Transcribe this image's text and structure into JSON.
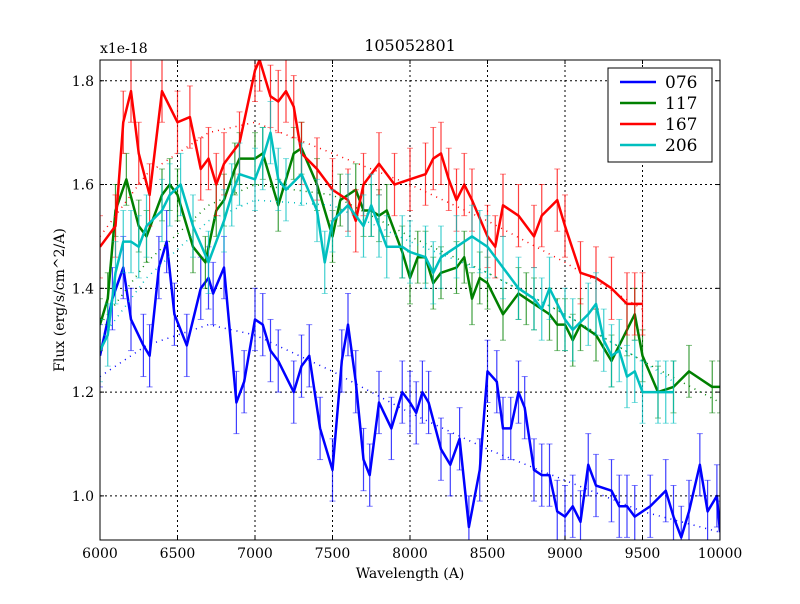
{
  "chart_data": {
    "type": "line",
    "title": "105052801",
    "xlabel": "Wavelength (A)",
    "ylabel": "Flux (erg/s/cm^2/A)",
    "y_offset_label": "x1e-18",
    "xlim": [
      6000,
      10000
    ],
    "ylim": [
      0.915,
      1.84
    ],
    "xticks": [
      6000,
      6500,
      7000,
      7500,
      8000,
      8500,
      9000,
      9500,
      10000
    ],
    "yticks": [
      1.0,
      1.2,
      1.4,
      1.6,
      1.8
    ],
    "ytick_labels": [
      "1.0",
      "1.2",
      "1.4",
      "1.6",
      "1.8"
    ],
    "grid": true,
    "legend_position": "top-right",
    "series": [
      {
        "name": "076",
        "color": "#0000ff",
        "err": 0.06,
        "x": [
          6000,
          6080,
          6150,
          6200,
          6280,
          6320,
          6380,
          6430,
          6480,
          6560,
          6650,
          6700,
          6730,
          6800,
          6880,
          6930,
          7000,
          7050,
          7100,
          7150,
          7250,
          7300,
          7350,
          7420,
          7500,
          7560,
          7600,
          7650,
          7700,
          7740,
          7800,
          7880,
          7950,
          8000,
          8040,
          8080,
          8120,
          8200,
          8260,
          8320,
          8380,
          8450,
          8500,
          8560,
          8600,
          8650,
          8700,
          8740,
          8800,
          8850,
          8900,
          8950,
          9000,
          9050,
          9100,
          9150,
          9200,
          9300,
          9350,
          9400,
          9450,
          9550,
          9650,
          9700,
          9750,
          9800,
          9870,
          9920,
          9980,
          10000
        ],
        "y": [
          1.27,
          1.38,
          1.44,
          1.34,
          1.29,
          1.27,
          1.44,
          1.49,
          1.35,
          1.29,
          1.4,
          1.42,
          1.39,
          1.44,
          1.18,
          1.22,
          1.34,
          1.33,
          1.28,
          1.26,
          1.2,
          1.25,
          1.27,
          1.13,
          1.05,
          1.26,
          1.33,
          1.22,
          1.07,
          1.04,
          1.18,
          1.13,
          1.2,
          1.18,
          1.16,
          1.2,
          1.18,
          1.09,
          1.06,
          1.11,
          0.94,
          1.05,
          1.24,
          1.22,
          1.13,
          1.13,
          1.2,
          1.17,
          1.05,
          1.04,
          1.04,
          0.97,
          0.96,
          0.98,
          0.95,
          1.06,
          1.02,
          1.01,
          0.98,
          0.98,
          0.96,
          0.98,
          1.01,
          0.96,
          0.92,
          0.97,
          1.06,
          0.97,
          1.0,
          0.93
        ],
        "model_x": [
          6000,
          6300,
          6700,
          7000,
          7500,
          8000,
          8500,
          9000,
          9500,
          10000
        ],
        "model_y": [
          1.23,
          1.29,
          1.33,
          1.31,
          1.24,
          1.16,
          1.09,
          1.03,
          0.97,
          0.93
        ]
      },
      {
        "name": "117",
        "color": "#008000",
        "err": 0.05,
        "x": [
          6000,
          6050,
          6100,
          6170,
          6250,
          6300,
          6400,
          6450,
          6500,
          6600,
          6680,
          6750,
          6800,
          6870,
          6900,
          7000,
          7050,
          7150,
          7250,
          7300,
          7400,
          7500,
          7550,
          7650,
          7700,
          7750,
          7800,
          7850,
          7950,
          8000,
          8050,
          8100,
          8150,
          8200,
          8300,
          8350,
          8400,
          8450,
          8500,
          8600,
          8700,
          8750,
          8800,
          8900,
          8950,
          9000,
          9050,
          9100,
          9200,
          9300,
          9400,
          9450,
          9500,
          9600,
          9700,
          9800,
          9950,
          10000
        ],
        "y": [
          1.33,
          1.38,
          1.55,
          1.61,
          1.52,
          1.5,
          1.58,
          1.6,
          1.58,
          1.48,
          1.45,
          1.55,
          1.57,
          1.63,
          1.65,
          1.65,
          1.66,
          1.56,
          1.66,
          1.67,
          1.6,
          1.5,
          1.57,
          1.59,
          1.55,
          1.55,
          1.54,
          1.55,
          1.47,
          1.42,
          1.46,
          1.46,
          1.41,
          1.43,
          1.44,
          1.46,
          1.38,
          1.42,
          1.41,
          1.35,
          1.39,
          1.38,
          1.37,
          1.35,
          1.33,
          1.33,
          1.3,
          1.33,
          1.31,
          1.26,
          1.32,
          1.35,
          1.27,
          1.2,
          1.21,
          1.24,
          1.21,
          1.21
        ],
        "model_x": [
          6000,
          6300,
          6700,
          7000,
          7500,
          8000,
          8500,
          9000,
          9500,
          10000
        ],
        "model_y": [
          1.33,
          1.45,
          1.56,
          1.6,
          1.58,
          1.5,
          1.43,
          1.35,
          1.26,
          1.18
        ]
      },
      {
        "name": "167",
        "color": "#ff0000",
        "err": 0.06,
        "x": [
          6000,
          6100,
          6150,
          6200,
          6250,
          6320,
          6400,
          6500,
          6580,
          6650,
          6700,
          6750,
          6800,
          6900,
          7000,
          7030,
          7100,
          7150,
          7200,
          7250,
          7300,
          7400,
          7500,
          7600,
          7650,
          7700,
          7800,
          7900,
          8000,
          8100,
          8150,
          8200,
          8250,
          8300,
          8350,
          8400,
          8500,
          8550,
          8600,
          8700,
          8800,
          8850,
          8950,
          9000,
          9100,
          9200,
          9300,
          9400,
          9450,
          9500
        ],
        "y": [
          1.48,
          1.52,
          1.72,
          1.78,
          1.66,
          1.58,
          1.78,
          1.72,
          1.73,
          1.63,
          1.65,
          1.6,
          1.64,
          1.68,
          1.82,
          1.84,
          1.77,
          1.76,
          1.78,
          1.75,
          1.66,
          1.63,
          1.59,
          1.57,
          1.53,
          1.6,
          1.64,
          1.6,
          1.61,
          1.62,
          1.65,
          1.66,
          1.61,
          1.57,
          1.6,
          1.57,
          1.5,
          1.48,
          1.56,
          1.54,
          1.5,
          1.54,
          1.57,
          1.52,
          1.43,
          1.42,
          1.4,
          1.37,
          1.37,
          1.37
        ],
        "model_x": [
          6000,
          6300,
          6700,
          7000,
          7500,
          8000,
          8500,
          9000,
          9500
        ],
        "model_y": [
          1.5,
          1.62,
          1.7,
          1.72,
          1.66,
          1.6,
          1.53,
          1.45,
          1.36
        ]
      },
      {
        "name": "206",
        "color": "#00bfbf",
        "err": 0.06,
        "x": [
          6000,
          6050,
          6100,
          6150,
          6200,
          6250,
          6300,
          6400,
          6450,
          6520,
          6600,
          6700,
          6800,
          6850,
          6900,
          7000,
          7050,
          7100,
          7150,
          7200,
          7300,
          7400,
          7450,
          7500,
          7600,
          7700,
          7750,
          7800,
          7850,
          7950,
          8000,
          8100,
          8150,
          8200,
          8300,
          8400,
          8450,
          8500,
          8600,
          8700,
          8800,
          8850,
          8900,
          9000,
          9050,
          9150,
          9200,
          9250,
          9300,
          9350,
          9400,
          9450,
          9500,
          9600,
          9650,
          9700
        ],
        "y": [
          1.28,
          1.31,
          1.43,
          1.49,
          1.49,
          1.48,
          1.52,
          1.55,
          1.58,
          1.6,
          1.52,
          1.45,
          1.53,
          1.58,
          1.62,
          1.61,
          1.65,
          1.7,
          1.61,
          1.59,
          1.62,
          1.55,
          1.45,
          1.53,
          1.56,
          1.52,
          1.56,
          1.52,
          1.48,
          1.48,
          1.47,
          1.46,
          1.43,
          1.46,
          1.48,
          1.5,
          1.49,
          1.48,
          1.44,
          1.4,
          1.38,
          1.36,
          1.4,
          1.34,
          1.32,
          1.35,
          1.37,
          1.3,
          1.27,
          1.28,
          1.23,
          1.24,
          1.2,
          1.2,
          1.2,
          1.2
        ],
        "model_x": [
          6000,
          6300,
          6700,
          7000,
          7500,
          8000,
          8500,
          9000,
          9500,
          9700
        ],
        "model_y": [
          1.3,
          1.42,
          1.53,
          1.57,
          1.56,
          1.49,
          1.43,
          1.35,
          1.26,
          1.22
        ]
      }
    ]
  }
}
